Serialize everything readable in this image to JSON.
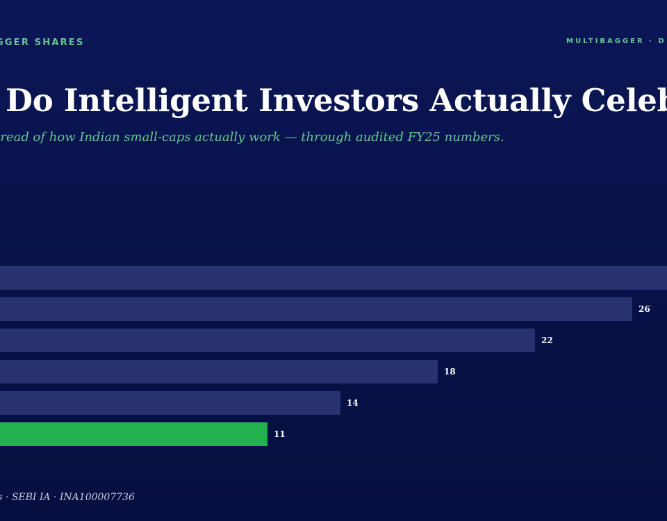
{
  "header": {
    "kicker": "GGER SHARES",
    "brand": "MULTIBAGGER · D",
    "title": "Do Intelligent Investors Actually Celeb",
    "subtitle": "r read of how Indian small-caps actually work — through audited FY25 numbers."
  },
  "footer": {
    "text": "es · SEBI IA · INA100007736"
  },
  "colors": {
    "bar": "#28326e",
    "highlight": "#22b14c",
    "accent": "#63c98f"
  },
  "chart_data": {
    "type": "bar",
    "orientation": "horizontal",
    "values": [
      null,
      26,
      22,
      18,
      14,
      11
    ],
    "labels": [
      "",
      "26",
      "22",
      "18",
      "14",
      "11"
    ],
    "highlight_index": 5
  }
}
